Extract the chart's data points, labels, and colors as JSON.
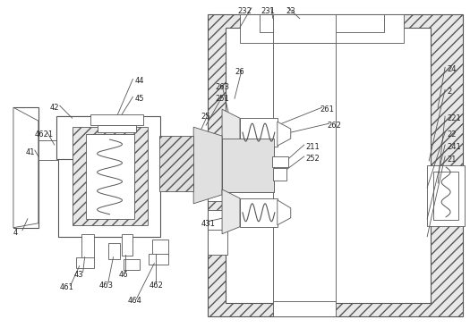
{
  "bg_color": "#ffffff",
  "lc": "#555555",
  "fig_width": 5.25,
  "fig_height": 3.67,
  "dpi": 100,
  "hatch_fc": "#e8e8e8",
  "hatch_pat": "///",
  "label_fs": 6.0,
  "label_color": "#222222"
}
